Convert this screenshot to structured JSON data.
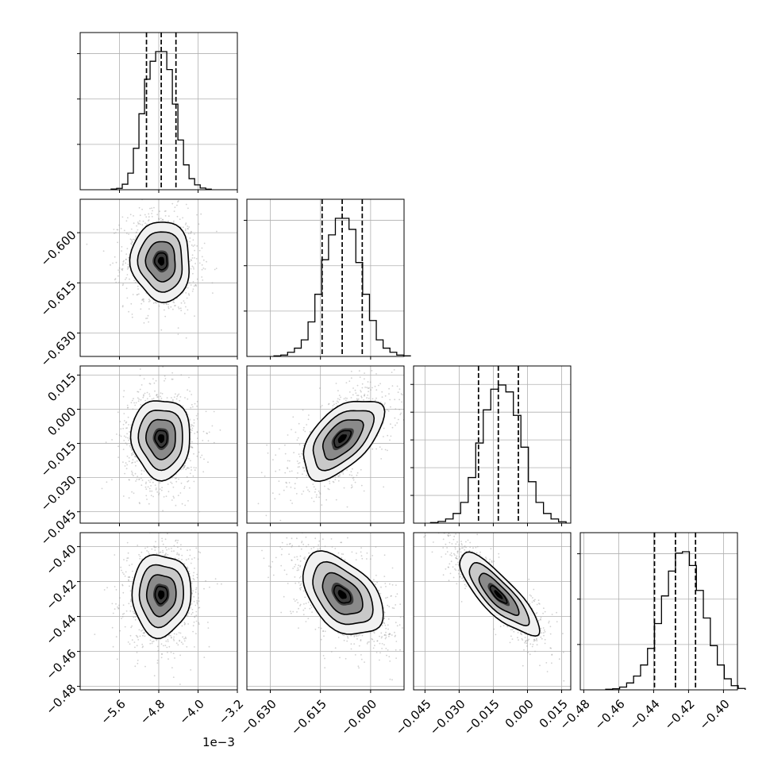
{
  "chart_data": {
    "type": "corner",
    "grid": true,
    "quantile_lines": "dashed",
    "contour_color": "#000000",
    "scatter_color": "#9a9a9a",
    "variables": [
      {
        "index": 0,
        "range": [
          -6.4,
          -3.2
        ],
        "ticks": [
          -5.6,
          -4.8,
          -4.0,
          -3.2
        ],
        "tick_labels": [
          "−5.6",
          "−4.8",
          "−4.0",
          "−3.2"
        ],
        "offset_label": "1e−3",
        "quantiles": [
          -5.05,
          -4.75,
          -4.45
        ],
        "hist_y_ticks": 3
      },
      {
        "index": 1,
        "range": [
          -0.637,
          -0.59
        ],
        "ticks": [
          -0.63,
          -0.615,
          -0.6
        ],
        "tick_labels": [
          "−0.630",
          "−0.615",
          "−0.600"
        ],
        "quantiles": [
          -0.6145,
          -0.6085,
          -0.6025
        ],
        "hist_y_ticks": 3
      },
      {
        "index": 2,
        "range": [
          -0.05,
          0.019
        ],
        "ticks": [
          -0.045,
          -0.03,
          -0.015,
          0.0,
          0.015
        ],
        "tick_labels": [
          "−0.045",
          "−0.030",
          "−0.015",
          "0.000",
          "0.015"
        ],
        "quantiles": [
          -0.0215,
          -0.0128,
          -0.004
        ],
        "hist_y_ticks": 5
      },
      {
        "index": 3,
        "range": [
          -0.482,
          -0.392
        ],
        "ticks": [
          -0.48,
          -0.46,
          -0.44,
          -0.42,
          -0.4
        ],
        "tick_labels": [
          "−0.48",
          "−0.46",
          "−0.44",
          "−0.42",
          "−0.40"
        ],
        "quantiles": [
          -0.4395,
          -0.4275,
          -0.416
        ],
        "hist_y_ticks": 3
      }
    ],
    "histograms": [
      [
        0.005,
        0.01,
        0.04,
        0.12,
        0.3,
        0.55,
        0.8,
        0.93,
        1.0,
        1.0,
        0.87,
        0.62,
        0.36,
        0.18,
        0.08,
        0.035,
        0.012,
        0.004
      ],
      [
        0.004,
        0.01,
        0.03,
        0.06,
        0.12,
        0.25,
        0.45,
        0.7,
        0.88,
        1.0,
        1.0,
        0.92,
        0.68,
        0.45,
        0.26,
        0.12,
        0.06,
        0.03,
        0.01,
        0.004
      ],
      [
        0.004,
        0.012,
        0.03,
        0.07,
        0.15,
        0.33,
        0.58,
        0.82,
        0.97,
        1.0,
        0.95,
        0.78,
        0.55,
        0.3,
        0.15,
        0.07,
        0.03,
        0.01
      ],
      [
        0.004,
        0.008,
        0.02,
        0.05,
        0.1,
        0.18,
        0.3,
        0.48,
        0.68,
        0.86,
        0.99,
        1.0,
        0.9,
        0.72,
        0.52,
        0.32,
        0.18,
        0.08,
        0.03,
        0.01
      ]
    ],
    "pairs": [
      {
        "row": 1,
        "col": 0,
        "rho": -0.05
      },
      {
        "row": 2,
        "col": 0,
        "rho": -0.03
      },
      {
        "row": 2,
        "col": 1,
        "rho": 0.55
      },
      {
        "row": 3,
        "col": 0,
        "rho": 0.02
      },
      {
        "row": 3,
        "col": 1,
        "rho": -0.45
      },
      {
        "row": 3,
        "col": 2,
        "rho": -0.82
      }
    ],
    "xlabel": "",
    "ylabel": "",
    "title": ""
  }
}
